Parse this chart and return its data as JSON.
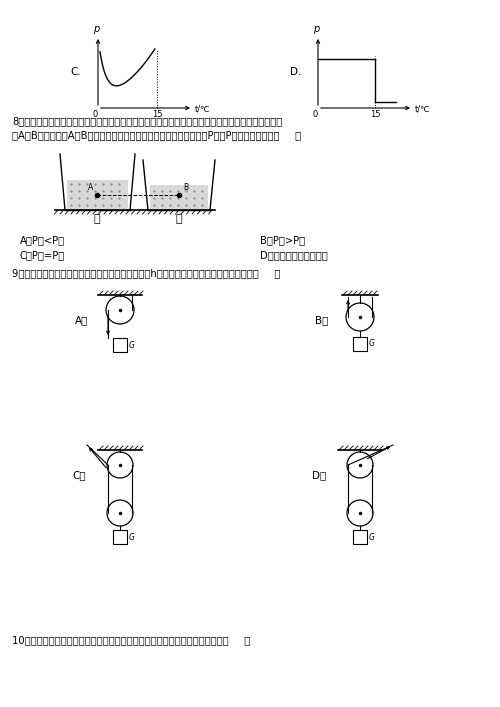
{
  "graph_c": {
    "label_c": "C.",
    "label_p": "p",
    "label_t": "t/℃",
    "label_0": "0",
    "label_15": "15"
  },
  "graph_d": {
    "label_d": "D.",
    "label_p": "p",
    "label_t": "t/℃",
    "label_0": "0",
    "label_15": "15"
  },
  "q8": {
    "line1": "8、如图所示，完全相同的甲、乙两个烧杯内装有密度不同的液体。在两烧杯中，距离杯底同一高度处",
    "line2": "有A、B两点，已知A、B两点的压强相等，则甲、乙烧杯对桌面的压强P甲、P乙的大小关系是（     ）",
    "opt_a": "A．P甲<P乙",
    "opt_b": "B．P甲>P乙",
    "opt_c": "C．P甲=P乙",
    "opt_d": "D．条件不足，无法判断",
    "jia": "甲",
    "yi": "乙",
    "A": "A",
    "B": "B"
  },
  "q9": {
    "text": "9、用图所示的滑轮或滑轮组，将同一物体匀速提高h，最省力的是（滑轮重和摩擦不计）（     ）",
    "opt_a": "A．",
    "opt_b": "B．",
    "opt_c": "C．",
    "opt_d": "D．",
    "G": "G"
  },
  "q10": {
    "text": "10、如图是我国奥运健儿参加双人皮划葱竞赛的情景，以下有关说法错误的是（     ）"
  }
}
